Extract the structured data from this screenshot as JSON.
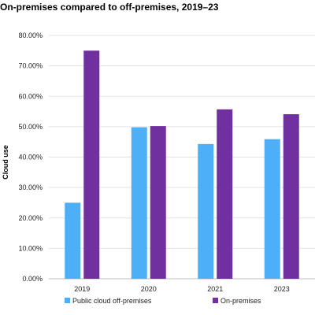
{
  "chart_data": {
    "type": "bar",
    "title": "On-premises compared to off-premises, 2019–23",
    "ylabel": "Cloud use",
    "xlabel": "",
    "categories": [
      "2019",
      "2020",
      "2021",
      "2023"
    ],
    "series": [
      {
        "name": "Public cloud off-premises",
        "values": [
          25.0,
          49.8,
          44.3,
          45.9
        ],
        "color": "#4daff5"
      },
      {
        "name": "On-premises",
        "values": [
          75.0,
          50.2,
          55.7,
          54.1
        ],
        "color": "#7030a0"
      }
    ],
    "ylim": [
      0,
      80
    ],
    "yticks": [
      "0.00%",
      "10.00%",
      "20.00%",
      "30.00%",
      "40.00%",
      "50.00%",
      "60.00%",
      "70.00%",
      "80.00%"
    ],
    "grid": true,
    "legend": "bottom"
  }
}
